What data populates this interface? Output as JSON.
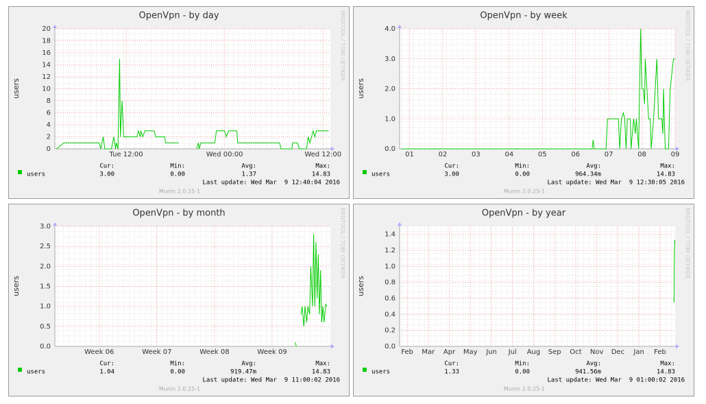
{
  "chart_data": [
    {
      "type": "line",
      "title": "OpenVpn - by day",
      "y_label": "users",
      "watermark": "RRDTOOL / TOBI OETIKER",
      "grid": true,
      "ylim": [
        0,
        20
      ],
      "yticks": [
        0,
        2,
        4,
        6,
        8,
        10,
        12,
        14,
        16,
        18,
        20
      ],
      "xlim": [
        3.3,
        36.9
      ],
      "xticks": [
        {
          "value": 12,
          "label": "Tue 12:00"
        },
        {
          "value": 24,
          "label": "Wed 00:00"
        },
        {
          "value": 36,
          "label": "Wed 12:00"
        }
      ],
      "series": [
        {
          "name": "users",
          "color": "#00cc00",
          "x": [
            3.5,
            4.4,
            8.7,
            8.9,
            9.2,
            9.4,
            10.2,
            10.5,
            10.7,
            10.8,
            11.0,
            11.2,
            11.3,
            11.5,
            11.7,
            13.3,
            13.5,
            13.7,
            13.8,
            14.0,
            14.3,
            15.4,
            15.6,
            16.7,
            16.8,
            18.4,
            19.5,
            20.6,
            20.8,
            20.9,
            21.1,
            22.8,
            23.0,
            24.0,
            24.2,
            24.5,
            25.5,
            25.6,
            30.7,
            30.9,
            32.2,
            32.3,
            32.9,
            33.1,
            34.0,
            34.2,
            34.4,
            34.8,
            35.0,
            35.2,
            36.7
          ],
          "values": [
            0,
            1,
            1,
            0,
            2,
            0,
            0,
            2,
            0,
            1,
            0,
            15,
            2,
            8,
            2,
            2,
            3,
            2,
            3,
            2,
            3,
            3,
            2,
            2,
            1,
            1,
            null,
            0,
            1,
            0,
            1,
            1,
            3,
            3,
            2,
            3,
            3,
            1,
            1,
            0,
            0,
            1,
            1,
            0,
            0,
            2,
            1,
            3,
            2,
            3,
            3
          ]
        }
      ],
      "stats": [
        {
          "label": "Cur:",
          "value": "3.00"
        },
        {
          "label": "Min:",
          "value": "0.00"
        },
        {
          "label": "Avg:",
          "value": "1.37"
        },
        {
          "label": "Max:",
          "value": "14.83"
        }
      ],
      "last_update": "Last update: Wed Mar  9 12:40:04 2016",
      "footer": "Munin 2.0.25-1"
    },
    {
      "type": "line",
      "title": "OpenVpn - by week",
      "y_label": "users",
      "watermark": "RRDTOOL / TOBI OETIKER",
      "grid": true,
      "ylim": [
        0,
        4
      ],
      "yticks": [
        {
          "value": 0,
          "label": "0.0"
        },
        {
          "value": 1,
          "label": "1.0"
        },
        {
          "value": 2,
          "label": "2.0"
        },
        {
          "value": 3,
          "label": "3.0"
        },
        {
          "value": 4,
          "label": "4.0"
        }
      ],
      "xlim": [
        0.7,
        9.0
      ],
      "xticks": [
        {
          "value": 1,
          "label": "01"
        },
        {
          "value": 2,
          "label": "02"
        },
        {
          "value": 3,
          "label": "03"
        },
        {
          "value": 4,
          "label": "04"
        },
        {
          "value": 5,
          "label": "05"
        },
        {
          "value": 6,
          "label": "06"
        },
        {
          "value": 7,
          "label": "07"
        },
        {
          "value": 8,
          "label": "08"
        },
        {
          "value": 9,
          "label": "09"
        }
      ],
      "series": [
        {
          "name": "users",
          "color": "#00cc00",
          "x": [
            0.75,
            6.5,
            6.53,
            6.56,
            6.92,
            6.96,
            7.29,
            7.33,
            7.38,
            7.44,
            7.48,
            7.52,
            7.56,
            7.65,
            7.67,
            7.75,
            7.8,
            7.83,
            7.9,
            7.96,
            8.0,
            8.04,
            8.08,
            8.1,
            8.15,
            8.2,
            8.25,
            8.28,
            8.35,
            8.4,
            8.45,
            8.5,
            8.6,
            8.63,
            8.65,
            8.7,
            8.8,
            8.85,
            8.9,
            8.95,
            9.0
          ],
          "values": [
            0,
            0,
            0.3,
            0,
            0,
            1,
            1,
            0,
            1,
            1.2,
            1,
            0,
            1,
            1,
            0,
            1,
            0.5,
            1,
            0,
            4,
            2,
            2,
            1.5,
            3,
            2,
            1,
            1,
            0,
            1,
            2,
            3,
            1,
            1,
            0.5,
            2,
            0,
            0,
            2,
            2.5,
            3,
            3
          ]
        }
      ],
      "stats": [
        {
          "label": "Cur:",
          "value": "3.00"
        },
        {
          "label": "Min:",
          "value": "0.00"
        },
        {
          "label": "Avg:",
          "value": "964.34m"
        },
        {
          "label": "Max:",
          "value": "14.83"
        }
      ],
      "last_update": "Last update: Wed Mar  9 12:30:05 2016",
      "footer": "Munin 2.0.25-1"
    },
    {
      "type": "line",
      "title": "OpenVpn - by month",
      "y_label": "users",
      "watermark": "RRDTOOL / TOBI OETIKER",
      "grid": true,
      "ylim": [
        0,
        3
      ],
      "yticks": [
        {
          "value": 0,
          "label": "0.0"
        },
        {
          "value": 0.5,
          "label": "0.5"
        },
        {
          "value": 1,
          "label": "1.0"
        },
        {
          "value": 1.5,
          "label": "1.5"
        },
        {
          "value": 2,
          "label": "2.0"
        },
        {
          "value": 2.5,
          "label": "2.5"
        },
        {
          "value": 3,
          "label": "3.0"
        }
      ],
      "xlim": [
        5.23,
        10.01
      ],
      "xticks": [
        {
          "value": 6,
          "label": "Week 06"
        },
        {
          "value": 7,
          "label": "Week 07"
        },
        {
          "value": 8,
          "label": "Week 08"
        },
        {
          "value": 9,
          "label": "Week 09"
        }
      ],
      "series": [
        {
          "name": "users",
          "color": "#00cc00",
          "x": [
            9.4,
            9.42,
            9.47,
            9.5,
            9.52,
            9.55,
            9.57,
            9.6,
            9.62,
            9.65,
            9.67,
            9.7,
            9.72,
            9.74,
            9.76,
            9.78,
            9.8,
            9.82,
            9.84,
            9.86,
            9.88,
            9.9,
            9.93,
            9.95
          ],
          "values": [
            0.1,
            0,
            null,
            0.8,
            1.0,
            0.5,
            1.0,
            0.6,
            1.0,
            0.8,
            2.0,
            1.0,
            2.8,
            1.0,
            2.6,
            1.2,
            2.3,
            0.8,
            1.9,
            0.6,
            1.0,
            0.6,
            1.05,
            1.0
          ]
        }
      ],
      "stats": [
        {
          "label": "Cur:",
          "value": "1.04"
        },
        {
          "label": "Min:",
          "value": "0.00"
        },
        {
          "label": "Avg:",
          "value": "919.47m"
        },
        {
          "label": "Max:",
          "value": "14.83"
        }
      ],
      "last_update": "Last update: Wed Mar  9 11:00:02 2016",
      "footer": "Munin 2.0.25-1"
    },
    {
      "type": "line",
      "title": "OpenVpn - by year",
      "y_label": "users",
      "watermark": "RRDTOOL / TOBI OETIKER",
      "grid": true,
      "ylim": [
        0,
        1.5
      ],
      "yticks": [
        {
          "value": 0,
          "label": "0.0"
        },
        {
          "value": 0.2,
          "label": "0.2"
        },
        {
          "value": 0.4,
          "label": "0.4"
        },
        {
          "value": 0.6,
          "label": "0.6"
        },
        {
          "value": 0.8,
          "label": "0.8"
        },
        {
          "value": 1,
          "label": "1.0"
        },
        {
          "value": 1.2,
          "label": "1.2"
        },
        {
          "value": 1.4,
          "label": "1.4"
        }
      ],
      "xlim": [
        -0.36,
        12.72
      ],
      "xticks": [
        {
          "value": 0,
          "label": "Feb"
        },
        {
          "value": 1,
          "label": "Mar"
        },
        {
          "value": 2,
          "label": "Apr"
        },
        {
          "value": 3,
          "label": "May"
        },
        {
          "value": 4,
          "label": "Jun"
        },
        {
          "value": 5,
          "label": "Jul"
        },
        {
          "value": 6,
          "label": "Aug"
        },
        {
          "value": 7,
          "label": "Sep"
        },
        {
          "value": 8,
          "label": "Oct"
        },
        {
          "value": 9,
          "label": "Nov"
        },
        {
          "value": 10,
          "label": "Dec"
        },
        {
          "value": 11,
          "label": "Jan"
        },
        {
          "value": 12,
          "label": "Feb"
        }
      ],
      "series": [
        {
          "name": "users",
          "color": "#00cc00",
          "x": [
            12.66,
            12.67,
            12.68,
            12.69,
            12.7,
            12.71
          ],
          "values": [
            0.6,
            0.55,
            1.0,
            1.2,
            1.33,
            1.3
          ]
        }
      ],
      "stats": [
        {
          "label": "Cur:",
          "value": "1.33"
        },
        {
          "label": "Min:",
          "value": "0.00"
        },
        {
          "label": "Avg:",
          "value": "941.56m"
        },
        {
          "label": "Max:",
          "value": "14.83"
        }
      ],
      "last_update": "Last update: Wed Mar  9 01:00:02 2016",
      "footer": "Munin 2.0.25-1"
    }
  ]
}
